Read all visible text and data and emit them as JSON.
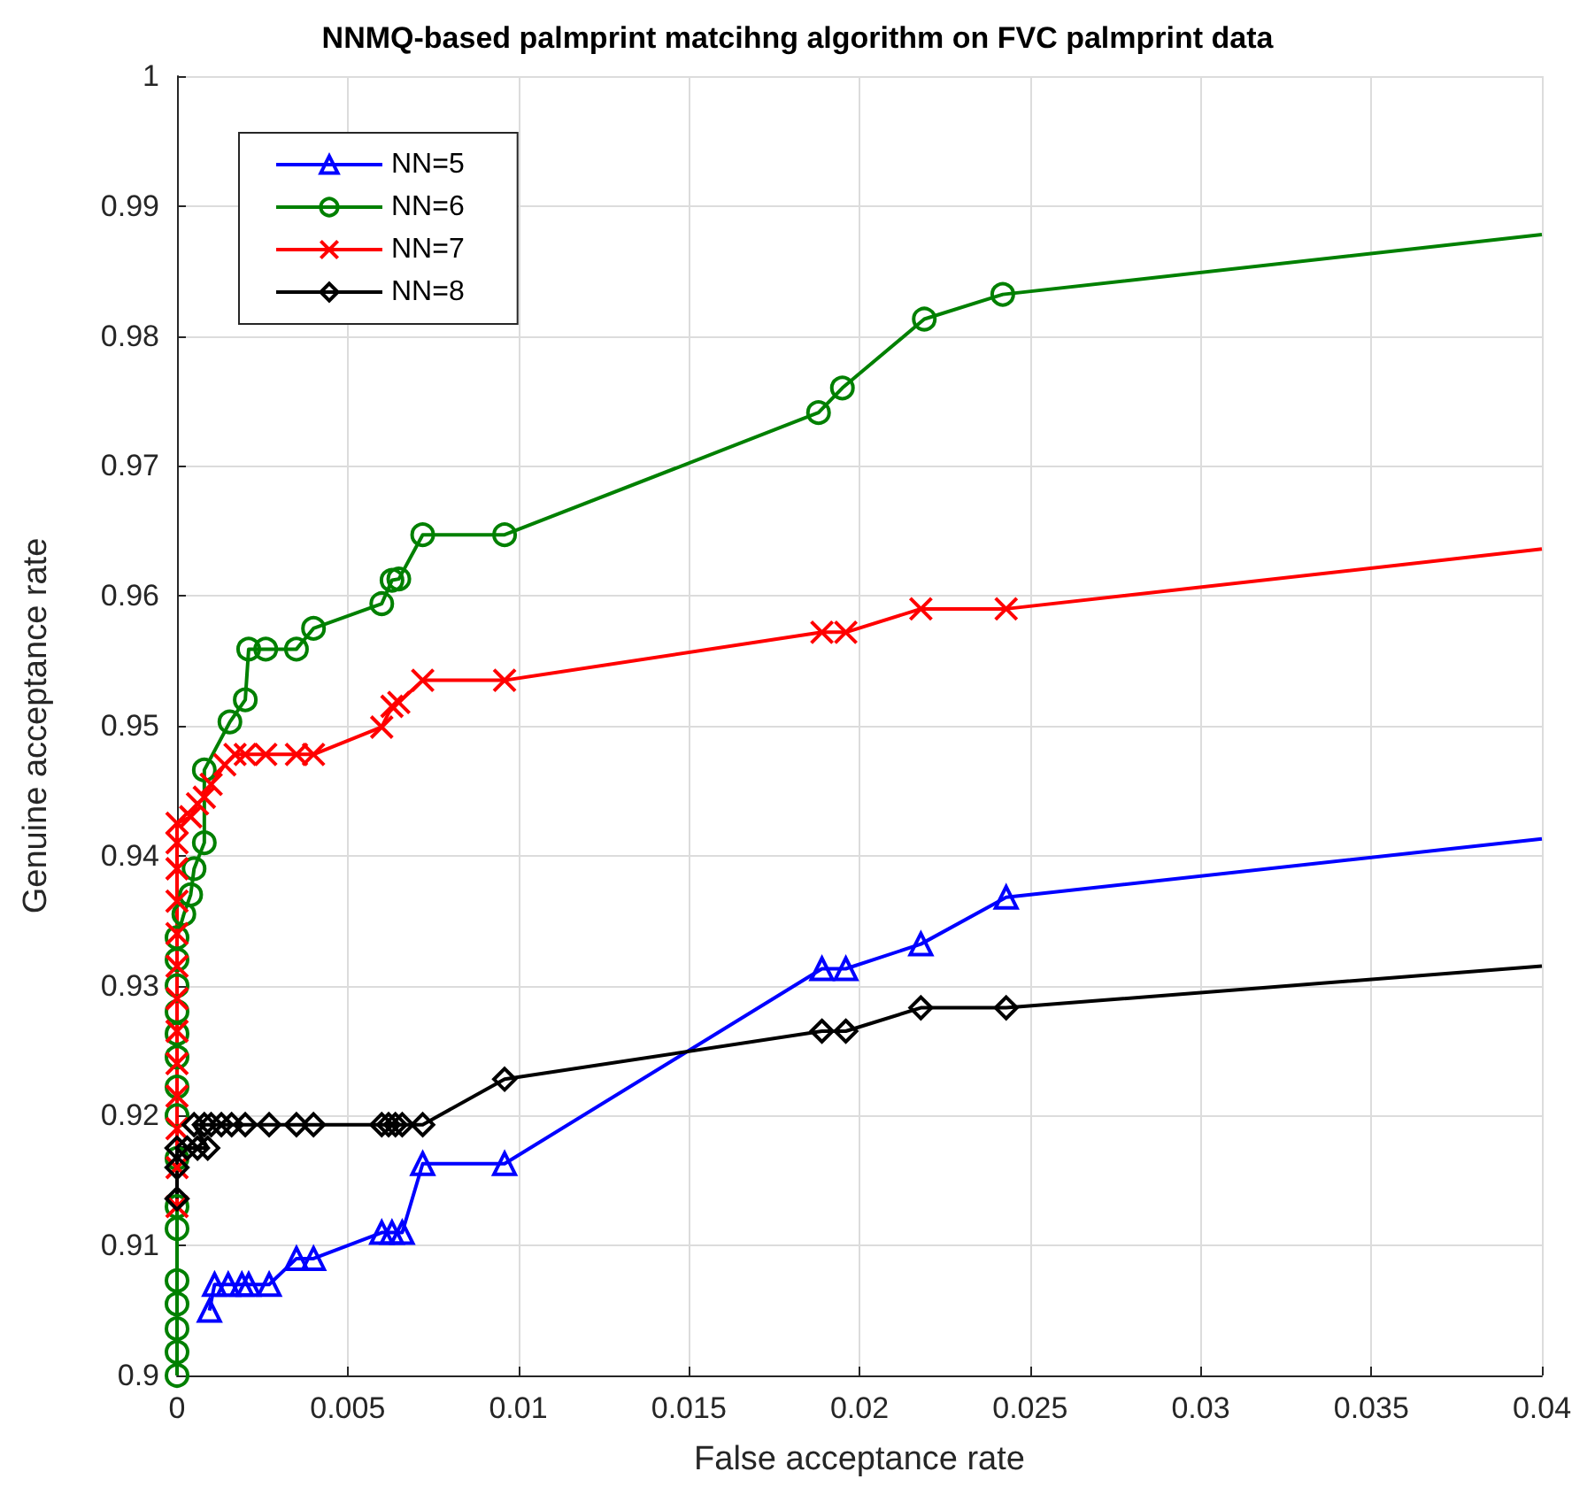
{
  "chart_data": {
    "type": "line",
    "title": "NNMQ-based palmprint matcihng algorithm on FVC palmprint data",
    "xlabel": "False acceptance rate",
    "ylabel": "Genuine acceptance rate",
    "xlim": [
      0,
      0.04
    ],
    "xticks": [
      0,
      0.005,
      0.01,
      0.015,
      0.02,
      0.025,
      0.03,
      0.035,
      0.04
    ],
    "ylim": [
      0.9,
      1
    ],
    "yticks": [
      0.9,
      0.91,
      0.92,
      0.93,
      0.94,
      0.95,
      0.96,
      0.97,
      0.98,
      0.99,
      1
    ],
    "grid": true,
    "legend": "top left",
    "line_style": "solid",
    "series": [
      {
        "name": "NN=5",
        "color": "#0000ff",
        "marker": "triangle",
        "x": [
          0.00095,
          0.0011,
          0.0015,
          0.0019,
          0.0021,
          0.0027,
          0.0035,
          0.004,
          0.006,
          0.0063,
          0.0066,
          0.0072,
          0.0096,
          0.0189,
          0.0196,
          0.0218,
          0.0243,
          0.04
        ],
        "values": [
          0.905,
          0.907,
          0.907,
          0.907,
          0.907,
          0.907,
          0.909,
          0.909,
          0.911,
          0.911,
          0.911,
          0.9163,
          0.9163,
          0.9313,
          0.9313,
          0.9332,
          0.9368,
          0.9413
        ]
      },
      {
        "name": "NN=6",
        "color": "#008000",
        "marker": "circle",
        "x": [
          0,
          0,
          0,
          0,
          0,
          0,
          0,
          0,
          0,
          0,
          0,
          0,
          0,
          0,
          0,
          0,
          0.0002,
          0.0004,
          0.0005,
          0.0008,
          0.0008,
          0.00155,
          0.002,
          0.0021,
          0.0026,
          0.0035,
          0.004,
          0.006,
          0.0063,
          0.0065,
          0.0072,
          0.0096,
          0.0188,
          0.0195,
          0.0219,
          0.0242,
          0.04
        ],
        "values": [
          0.9,
          0.9018,
          0.9036,
          0.9055,
          0.9073,
          0.9113,
          0.913,
          0.9167,
          0.92,
          0.9222,
          0.9245,
          0.9263,
          0.928,
          0.93,
          0.932,
          0.9337,
          0.9355,
          0.937,
          0.939,
          0.941,
          0.9466,
          0.9503,
          0.952,
          0.9559,
          0.9559,
          0.9559,
          0.9575,
          0.9594,
          0.9612,
          0.9613,
          0.9647,
          0.9647,
          0.9741,
          0.976,
          0.9813,
          0.9832,
          0.9878
        ]
      },
      {
        "name": "NN=7",
        "color": "#ff0000",
        "marker": "cross",
        "x": [
          0,
          0,
          0,
          0,
          0,
          0,
          0,
          0,
          0,
          0,
          0,
          0,
          0,
          0.0004,
          0.0006,
          0.0008,
          0.001,
          0.0014,
          0.0017,
          0.002,
          0.0026,
          0.0035,
          0.004,
          0.006,
          0.0063,
          0.0065,
          0.0072,
          0.0096,
          0.0189,
          0.0196,
          0.0218,
          0.0243,
          0.04
        ],
        "values": [
          0.913,
          0.916,
          0.919,
          0.9215,
          0.924,
          0.9265,
          0.929,
          0.9315,
          0.934,
          0.9365,
          0.939,
          0.941,
          0.9425,
          0.943,
          0.944,
          0.9445,
          0.9455,
          0.947,
          0.9478,
          0.9478,
          0.9478,
          0.9478,
          0.9478,
          0.9499,
          0.9515,
          0.9518,
          0.9535,
          0.9535,
          0.9572,
          0.9572,
          0.959,
          0.959,
          0.9636
        ]
      },
      {
        "name": "NN=8",
        "color": "#000000",
        "marker": "diamond",
        "x": [
          0,
          0,
          0,
          0.0003,
          0.0006,
          0.0009,
          0.0005,
          0.0008,
          0.001,
          0.0013,
          0.0016,
          0.002,
          0.0027,
          0.0035,
          0.004,
          0.006,
          0.0062,
          0.0064,
          0.0066,
          0.0072,
          0.0096,
          0.0189,
          0.0196,
          0.0218,
          0.0243,
          0.04
        ],
        "values": [
          0.9136,
          0.916,
          0.9175,
          0.9175,
          0.9175,
          0.9175,
          0.9193,
          0.9193,
          0.9193,
          0.9193,
          0.9193,
          0.9193,
          0.9193,
          0.9193,
          0.9193,
          0.9193,
          0.9193,
          0.9193,
          0.9193,
          0.9193,
          0.9228,
          0.9265,
          0.9265,
          0.9283,
          0.9283,
          0.9315
        ]
      }
    ]
  }
}
